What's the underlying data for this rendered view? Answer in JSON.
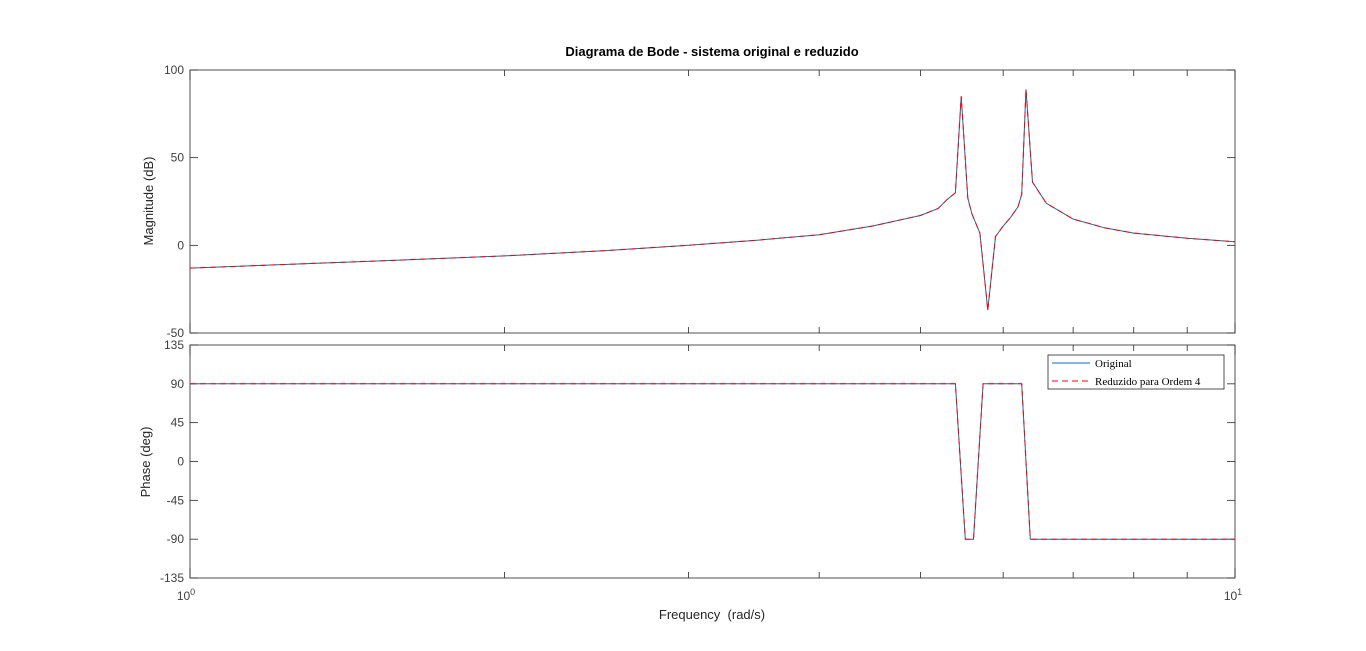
{
  "chart_data": [
    {
      "type": "line",
      "title": "Diagrama de Bode - sistema original e reduzido",
      "xlabel": "",
      "ylabel": "Magnitude (dB)",
      "xscale": "log",
      "xlim": [
        1,
        10
      ],
      "ylim": [
        -50,
        100
      ],
      "yticks": [
        "100",
        "50",
        "0",
        "-50"
      ],
      "grid": false,
      "series": [
        {
          "name": "Original",
          "color": "#0072bd",
          "style": "solid",
          "x": [
            1,
            1.5,
            2,
            2.5,
            3,
            3.5,
            4,
            4.5,
            5,
            5.2,
            5.3,
            5.4,
            5.47,
            5.55,
            5.6,
            5.7,
            5.8,
            5.9,
            6.0,
            6.1,
            6.2,
            6.25,
            6.31,
            6.4,
            6.6,
            7.0,
            7.5,
            8.0,
            9.0,
            10.0
          ],
          "y": [
            -13,
            -9,
            -6,
            -3,
            0,
            3,
            6,
            11,
            17,
            21,
            26,
            30,
            85,
            27,
            18,
            7,
            -37,
            5,
            11,
            16,
            22,
            29,
            89,
            36,
            24,
            15,
            10,
            7,
            4,
            2
          ]
        },
        {
          "name": "Reduzido para Ordem 4",
          "color": "#ff0000",
          "style": "dashed",
          "x": [
            1,
            1.5,
            2,
            2.5,
            3,
            3.5,
            4,
            4.5,
            5,
            5.2,
            5.3,
            5.4,
            5.47,
            5.55,
            5.6,
            5.7,
            5.8,
            5.9,
            6.0,
            6.1,
            6.2,
            6.25,
            6.31,
            6.4,
            6.6,
            7.0,
            7.5,
            8.0,
            9.0,
            10.0
          ],
          "y": [
            -13,
            -9,
            -6,
            -3,
            0,
            3,
            6,
            11,
            17,
            21,
            26,
            30,
            85,
            27,
            18,
            7,
            -37,
            5,
            11,
            16,
            22,
            29,
            89,
            36,
            24,
            15,
            10,
            7,
            4,
            2
          ]
        }
      ]
    },
    {
      "type": "line",
      "title": "",
      "xlabel": "Frequency  (rad/s)",
      "ylabel": "Phase (deg)",
      "xscale": "log",
      "xlim": [
        1,
        10
      ],
      "ylim": [
        -135,
        135
      ],
      "yticks": [
        "135",
        "90",
        "45",
        "0",
        "-45",
        "-90",
        "-135"
      ],
      "xticks": [
        {
          "base": "10",
          "exp": "0"
        },
        {
          "base": "10",
          "exp": "1"
        }
      ],
      "grid": false,
      "legend": "top-right",
      "series": [
        {
          "name": "Original",
          "color": "#0072bd",
          "style": "solid",
          "x": [
            1,
            5.4,
            5.52,
            5.62,
            5.74,
            6.25,
            6.37,
            10
          ],
          "y": [
            90,
            90,
            -90,
            -90,
            90,
            90,
            -90,
            -90
          ]
        },
        {
          "name": "Reduzido para Ordem 4",
          "color": "#ff0000",
          "style": "dashed",
          "x": [
            1,
            5.4,
            5.52,
            5.62,
            5.74,
            6.25,
            6.37,
            10
          ],
          "y": [
            90,
            90,
            -90,
            -90,
            90,
            90,
            -90,
            -90
          ]
        }
      ]
    }
  ]
}
